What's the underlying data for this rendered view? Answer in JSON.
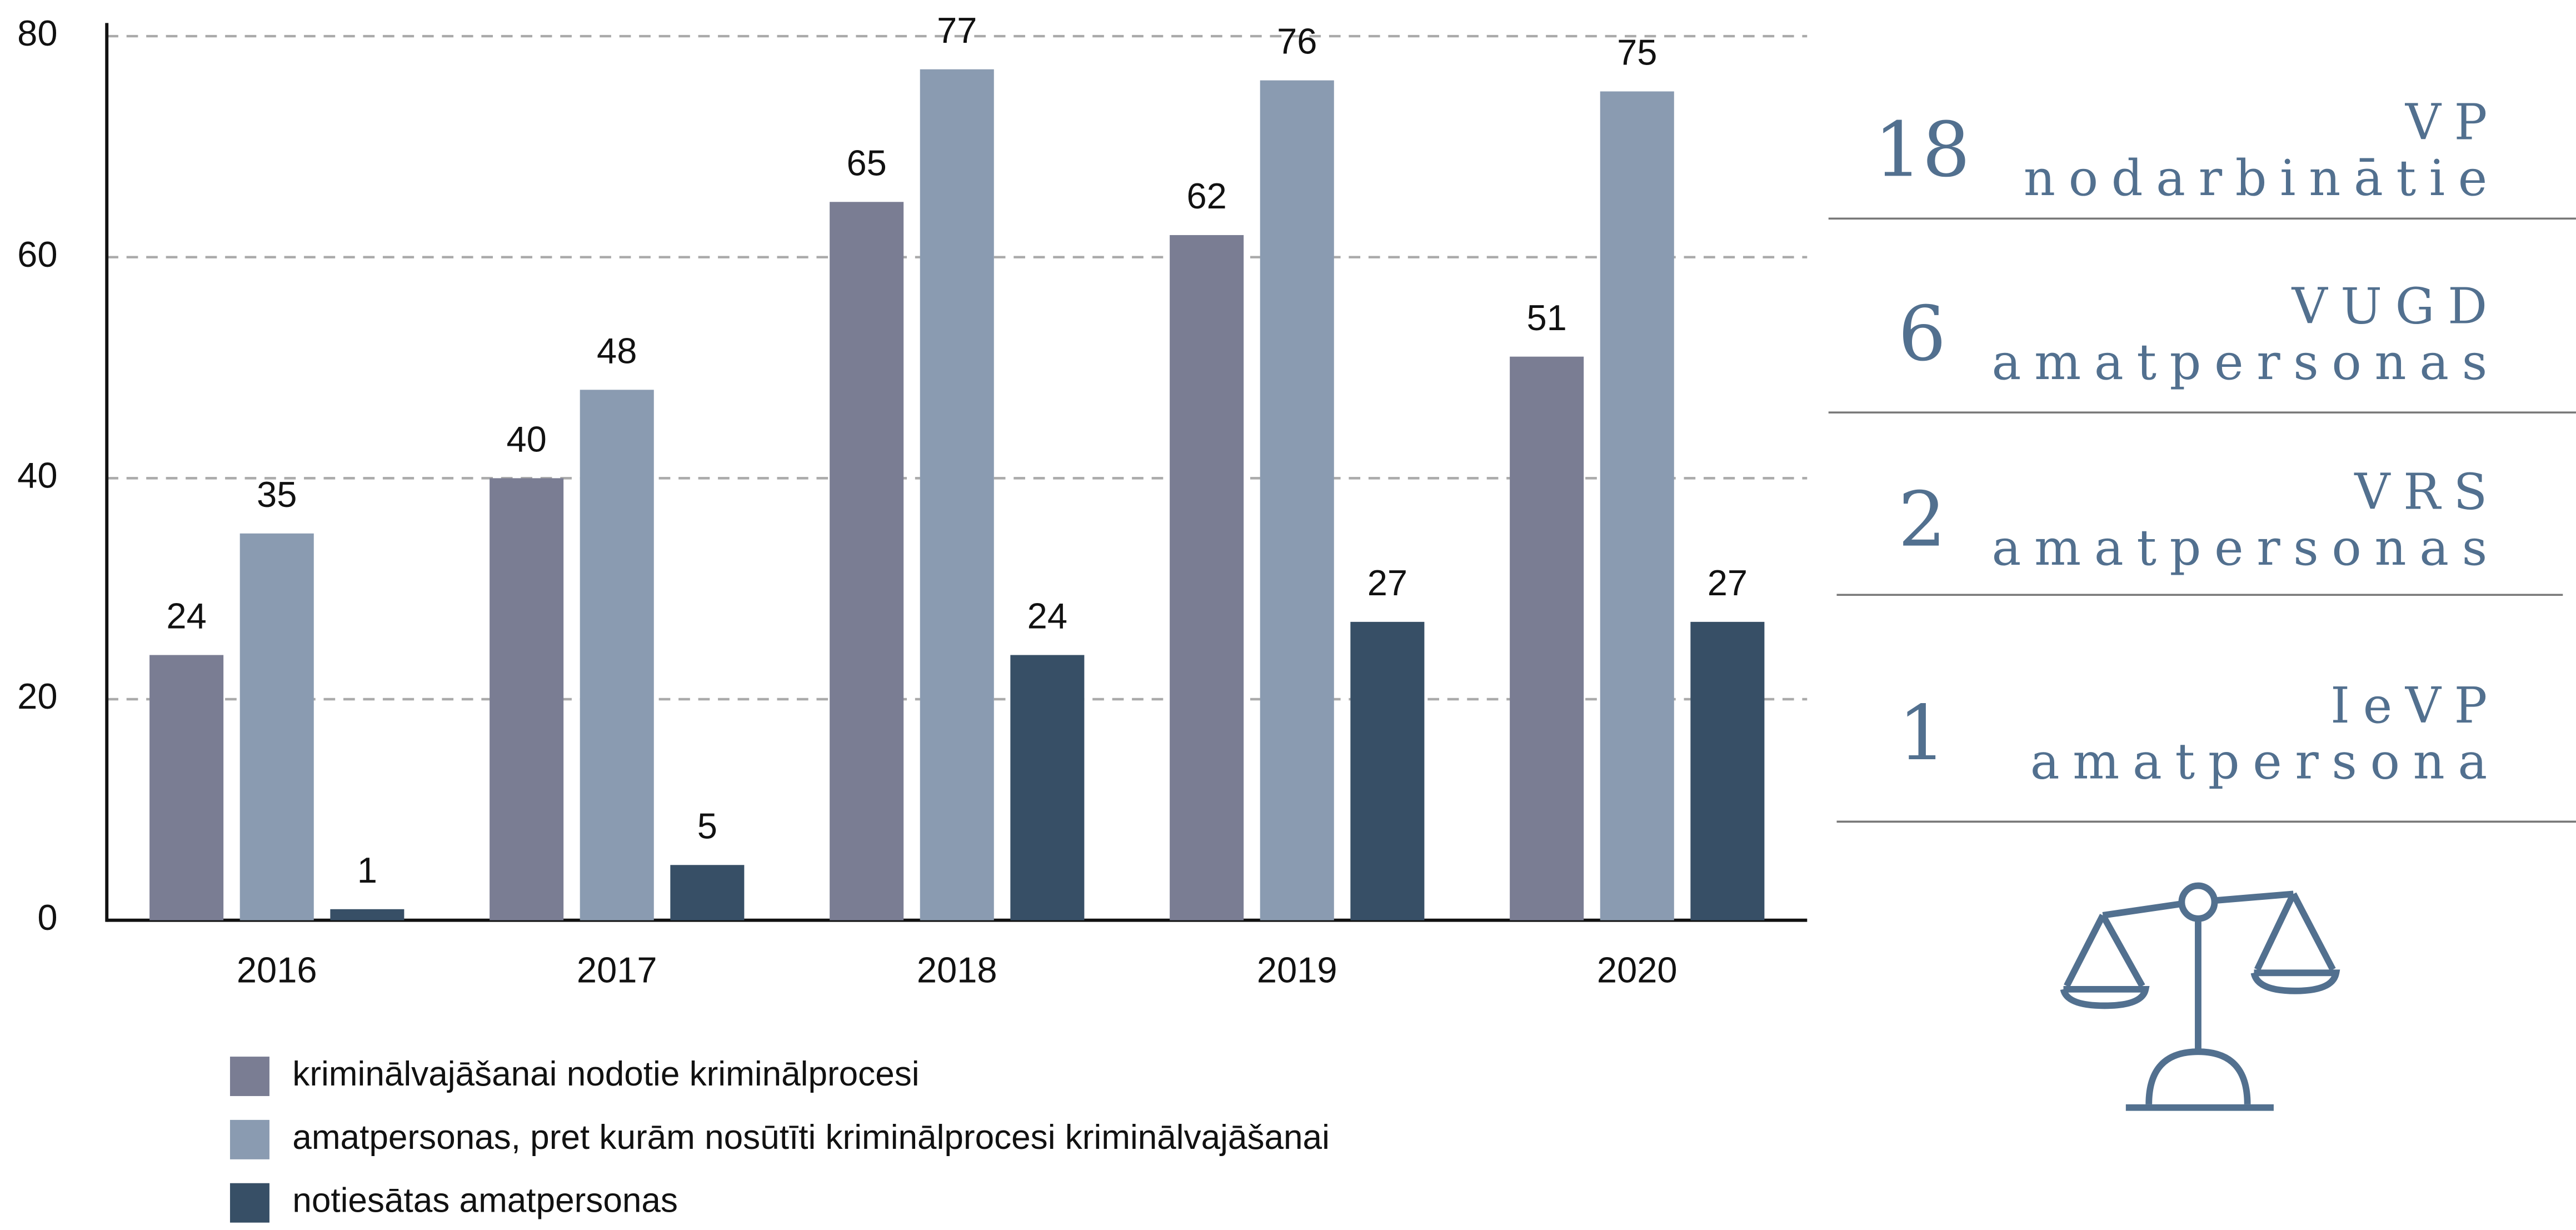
{
  "chart_data": {
    "type": "bar",
    "categories": [
      "2016",
      "2017",
      "2018",
      "2019",
      "2020"
    ],
    "series": [
      {
        "name": "kriminālvajāšanai nodotie kriminālprocesi",
        "color": "#7a7d93",
        "values": [
          24,
          40,
          65,
          62,
          51
        ]
      },
      {
        "name": "amatpersonas, pret kurām nosūtīti kriminālprocesi kriminālvajāšanai",
        "color": "#8a9bb1",
        "values": [
          35,
          48,
          77,
          76,
          75
        ]
      },
      {
        "name": "notiesātas amatpersonas",
        "color": "#374f66",
        "values": [
          1,
          5,
          24,
          27,
          27
        ]
      }
    ],
    "ylim": [
      0,
      80
    ],
    "yticks": [
      0,
      20,
      40,
      60,
      80
    ],
    "grid": true,
    "legend": "bottom"
  },
  "side_stats": [
    {
      "number": 18,
      "label": [
        "VP",
        "nodarbinātie"
      ]
    },
    {
      "number": 6,
      "label": [
        "VUGD",
        "amatpersonas"
      ]
    },
    {
      "number": 2,
      "label": [
        "VRS",
        "amatpersonas"
      ]
    },
    {
      "number": 1,
      "label": [
        "IeVP",
        "amatpersona"
      ]
    }
  ]
}
